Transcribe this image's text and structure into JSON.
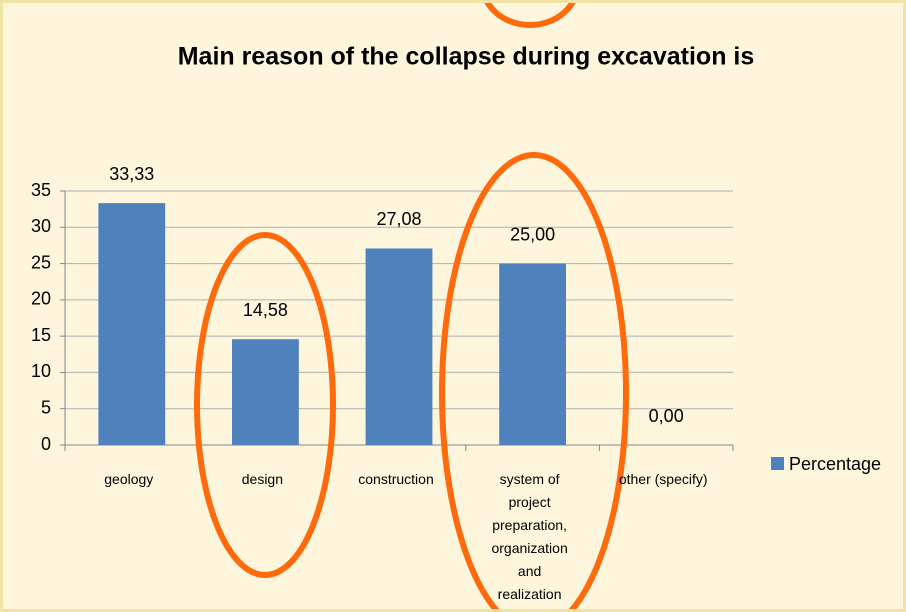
{
  "chart_data": {
    "type": "bar",
    "title": "Main reason of the collapse during excavation is",
    "categories": [
      "geology",
      "design",
      "construction",
      "system of project preparation, organization and realization",
      "other (specify)"
    ],
    "series": [
      {
        "name": "Percentage",
        "color": "#4f81bd",
        "values": [
          33.33,
          14.58,
          27.08,
          25.0,
          0.0
        ],
        "value_labels": [
          "33,33",
          "14,58",
          "27,08",
          "25,00",
          "0,00"
        ]
      }
    ],
    "ylim": [
      0,
      35
    ],
    "yticks": [
      0,
      5,
      10,
      15,
      20,
      25,
      30,
      35
    ],
    "grid": true,
    "legend": "right"
  }
}
